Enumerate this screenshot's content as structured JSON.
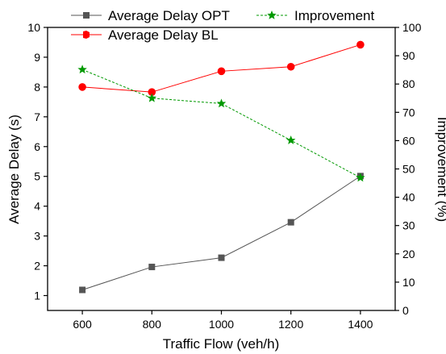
{
  "chart_data": {
    "type": "line",
    "x": [
      600,
      800,
      1000,
      1200,
      1400
    ],
    "xlabel": "Traffic Flow (veh/h)",
    "xlim": [
      500,
      1500
    ],
    "xticks": [
      "600",
      "800",
      "1000",
      "1200",
      "1400"
    ],
    "ylabel": "Average Delay (s)",
    "ylim": [
      0.5,
      10
    ],
    "yticks": [
      "1",
      "2",
      "3",
      "4",
      "5",
      "6",
      "7",
      "8",
      "9",
      "10"
    ],
    "y2label": "Improvement (%)",
    "y2lim": [
      0,
      100
    ],
    "y2ticks": [
      "0",
      "10",
      "20",
      "30",
      "40",
      "50",
      "60",
      "70",
      "80",
      "90",
      "100"
    ],
    "grid": false,
    "series": [
      {
        "name": "Average Delay OPT",
        "axis": "left",
        "values": [
          1.19,
          1.96,
          2.27,
          3.46,
          5.01
        ],
        "color": "#555555",
        "marker": "square",
        "line": "solid"
      },
      {
        "name": "Average Delay BL",
        "axis": "left",
        "values": [
          8.0,
          7.83,
          8.53,
          8.68,
          9.42
        ],
        "color": "#ff0000",
        "marker": "circle",
        "line": "solid"
      },
      {
        "name": "Improvement",
        "axis": "right",
        "values": [
          85.1,
          75,
          73.1,
          60.1,
          46.9
        ],
        "color": "#009900",
        "marker": "star",
        "line": "dashed"
      }
    ],
    "legend": [
      {
        "label": "Average Delay OPT",
        "placement": "top-left"
      },
      {
        "label": "Average Delay BL",
        "placement": "top-left"
      },
      {
        "label": "Improvement",
        "placement": "top-right"
      }
    ]
  }
}
